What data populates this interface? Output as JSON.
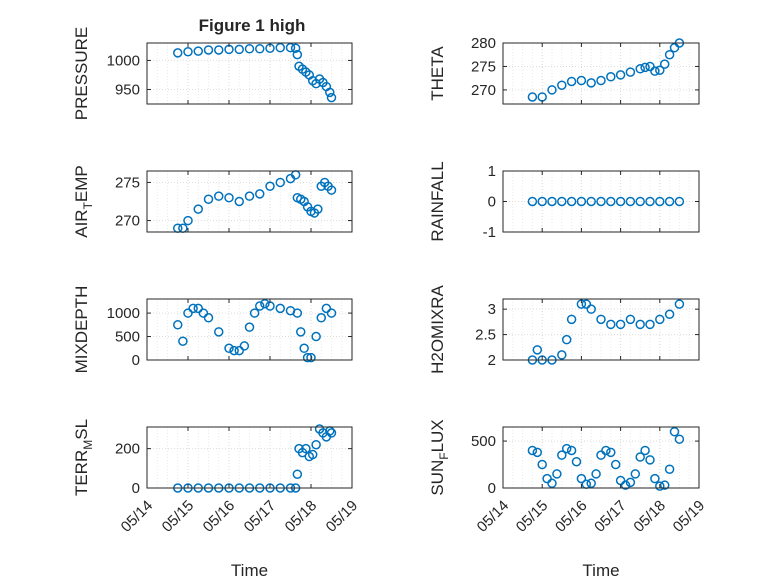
{
  "figure": {
    "title": "Figure 1 high",
    "marker_color": "#0072BD"
  },
  "chart_data": [
    {
      "type": "scatter",
      "id": "pressure",
      "title": "Figure 1 high",
      "ylabel": "PRESSURE",
      "xlim": [
        "05/14",
        "05/19"
      ],
      "ylim": [
        925,
        1030
      ],
      "yticks": [
        950,
        1000
      ],
      "xtick_labels": [],
      "x": [
        "05/14 18:00",
        "05/15 00:00",
        "05/15 06:00",
        "05/15 12:00",
        "05/15 18:00",
        "05/16 00:00",
        "05/16 06:00",
        "05/16 12:00",
        "05/16 18:00",
        "05/17 00:00",
        "05/17 06:00",
        "05/17 12:00",
        "05/17 15:00",
        "05/17 16:00",
        "05/17 17:00",
        "05/17 19:00",
        "05/17 21:00",
        "05/17 23:00",
        "05/18 01:00",
        "05/18 03:00",
        "05/18 05:00",
        "05/18 07:00",
        "05/18 09:00",
        "05/18 11:00",
        "05/18 12:00"
      ],
      "y": [
        1013,
        1015,
        1016,
        1018,
        1018,
        1019,
        1019,
        1020,
        1020,
        1021,
        1022,
        1022,
        1021,
        1010,
        990,
        985,
        980,
        975,
        965,
        960,
        968,
        962,
        955,
        945,
        936
      ]
    },
    {
      "type": "scatter",
      "id": "theta",
      "ylabel": "THETA",
      "xlim": [
        "05/14",
        "05/19"
      ],
      "ylim": [
        267,
        280
      ],
      "yticks": [
        270,
        275,
        280
      ],
      "xtick_labels": [],
      "x": [
        "05/14 18:00",
        "05/15 00:00",
        "05/15 06:00",
        "05/15 12:00",
        "05/15 18:00",
        "05/16 00:00",
        "05/16 06:00",
        "05/16 12:00",
        "05/16 18:00",
        "05/17 00:00",
        "05/17 06:00",
        "05/17 12:00",
        "05/17 15:00",
        "05/17 18:00",
        "05/17 21:00",
        "05/18 00:00",
        "05/18 03:00",
        "05/18 06:00",
        "05/18 09:00",
        "05/18 12:00"
      ],
      "y": [
        268.5,
        268.5,
        270,
        271,
        271.8,
        272,
        271.5,
        272,
        272.8,
        273.2,
        273.8,
        274.5,
        274.8,
        275,
        274,
        274.2,
        275.5,
        277.5,
        279,
        280
      ]
    },
    {
      "type": "scatter",
      "id": "air_temp",
      "ylabel": "AIR_TEMP",
      "xlim": [
        "05/14",
        "05/19"
      ],
      "ylim": [
        268.5,
        276.5
      ],
      "yticks": [
        270,
        275
      ],
      "xtick_labels": [],
      "x": [
        "05/14 18:00",
        "05/14 21:00",
        "05/15 00:00",
        "05/15 06:00",
        "05/15 12:00",
        "05/15 18:00",
        "05/16 00:00",
        "05/16 06:00",
        "05/16 12:00",
        "05/16 18:00",
        "05/17 00:00",
        "05/17 06:00",
        "05/17 12:00",
        "05/17 15:00",
        "05/17 16:00",
        "05/17 18:00",
        "05/17 20:00",
        "05/17 22:00",
        "05/18 00:00",
        "05/18 02:00",
        "05/18 04:00",
        "05/18 06:00",
        "05/18 08:00",
        "05/18 10:00",
        "05/18 12:00"
      ],
      "y": [
        269,
        269,
        270,
        271.5,
        272.8,
        273.2,
        273,
        272.5,
        273.2,
        273.5,
        274.5,
        275,
        275.5,
        276,
        273,
        272.8,
        272.5,
        271.8,
        271.2,
        271,
        271.5,
        274.5,
        275,
        274.5,
        274
      ]
    },
    {
      "type": "scatter",
      "id": "rainfall",
      "ylabel": "RAINFALL",
      "xlim": [
        "05/14",
        "05/19"
      ],
      "ylim": [
        -1,
        1
      ],
      "yticks": [
        -1,
        0,
        1
      ],
      "xtick_labels": [],
      "x": [
        "05/14 18:00",
        "05/15 00:00",
        "05/15 06:00",
        "05/15 12:00",
        "05/15 18:00",
        "05/16 00:00",
        "05/16 06:00",
        "05/16 12:00",
        "05/16 18:00",
        "05/17 00:00",
        "05/17 06:00",
        "05/17 12:00",
        "05/17 18:00",
        "05/18 00:00",
        "05/18 06:00",
        "05/18 12:00"
      ],
      "y": [
        0,
        0,
        0,
        0,
        0,
        0,
        0,
        0,
        0,
        0,
        0,
        0,
        0,
        0,
        0,
        0
      ]
    },
    {
      "type": "scatter",
      "id": "mixdepth",
      "ylabel": "MIXDEPTH",
      "xlim": [
        "05/14",
        "05/19"
      ],
      "ylim": [
        0,
        1300
      ],
      "yticks": [
        0,
        500,
        1000
      ],
      "xtick_labels": [],
      "x": [
        "05/14 18:00",
        "05/14 21:00",
        "05/15 00:00",
        "05/15 03:00",
        "05/15 06:00",
        "05/15 09:00",
        "05/15 12:00",
        "05/15 18:00",
        "05/16 00:00",
        "05/16 03:00",
        "05/16 06:00",
        "05/16 09:00",
        "05/16 12:00",
        "05/16 15:00",
        "05/16 18:00",
        "05/16 21:00",
        "05/17 00:00",
        "05/17 06:00",
        "05/17 12:00",
        "05/17 16:00",
        "05/17 18:00",
        "05/17 20:00",
        "05/17 22:00",
        "05/18 00:00",
        "05/18 03:00",
        "05/18 06:00",
        "05/18 09:00",
        "05/18 12:00"
      ],
      "y": [
        750,
        400,
        1000,
        1100,
        1100,
        1000,
        900,
        600,
        250,
        200,
        200,
        300,
        700,
        1000,
        1150,
        1200,
        1150,
        1100,
        1050,
        1000,
        600,
        250,
        50,
        50,
        500,
        900,
        1100,
        1000
      ]
    },
    {
      "type": "scatter",
      "id": "h2omixra",
      "ylabel": "H2OMIXRA",
      "xlim": [
        "05/14",
        "05/19"
      ],
      "ylim": [
        2,
        3.2
      ],
      "yticks": [
        2,
        2.5,
        3
      ],
      "xtick_labels": [],
      "x": [
        "05/14 18:00",
        "05/14 21:00",
        "05/15 00:00",
        "05/15 06:00",
        "05/15 12:00",
        "05/15 15:00",
        "05/15 18:00",
        "05/16 00:00",
        "05/16 03:00",
        "05/16 06:00",
        "05/16 12:00",
        "05/16 18:00",
        "05/17 00:00",
        "05/17 06:00",
        "05/17 12:00",
        "05/17 18:00",
        "05/18 00:00",
        "05/18 06:00",
        "05/18 12:00"
      ],
      "y": [
        2,
        2.2,
        2,
        2,
        2.1,
        2.4,
        2.8,
        3.1,
        3.1,
        3,
        2.8,
        2.7,
        2.7,
        2.8,
        2.7,
        2.7,
        2.8,
        2.9,
        3.1
      ]
    },
    {
      "type": "scatter",
      "id": "terr_msl",
      "ylabel": "TERR_MSL",
      "xlim": [
        "05/14",
        "05/19"
      ],
      "ylim": [
        0,
        310
      ],
      "yticks": [
        0,
        200
      ],
      "xtick_labels": [
        "05/14",
        "05/15",
        "05/16",
        "05/17",
        "05/18",
        "05/19"
      ],
      "xlabel": "Time",
      "x": [
        "05/14 18:00",
        "05/15 00:00",
        "05/15 06:00",
        "05/15 12:00",
        "05/15 18:00",
        "05/16 00:00",
        "05/16 06:00",
        "05/16 12:00",
        "05/16 18:00",
        "05/17 00:00",
        "05/17 06:00",
        "05/17 12:00",
        "05/17 15:00",
        "05/17 16:00",
        "05/17 17:00",
        "05/17 19:00",
        "05/17 21:00",
        "05/17 23:00",
        "05/18 01:00",
        "05/18 03:00",
        "05/18 05:00",
        "05/18 07:00",
        "05/18 09:00",
        "05/18 11:00",
        "05/18 12:00"
      ],
      "y": [
        0,
        0,
        0,
        0,
        0,
        0,
        0,
        0,
        0,
        0,
        0,
        0,
        0,
        70,
        200,
        180,
        200,
        160,
        170,
        220,
        300,
        280,
        260,
        290,
        280
      ]
    },
    {
      "type": "scatter",
      "id": "sun_flux",
      "ylabel": "SUN_FLUX",
      "xlim": [
        "05/14",
        "05/19"
      ],
      "ylim": [
        0,
        650
      ],
      "yticks": [
        0,
        500
      ],
      "xtick_labels": [
        "05/14",
        "05/15",
        "05/16",
        "05/17",
        "05/18",
        "05/19"
      ],
      "xlabel": "Time",
      "x": [
        "05/14 18:00",
        "05/14 21:00",
        "05/15 00:00",
        "05/15 03:00",
        "05/15 06:00",
        "05/15 09:00",
        "05/15 12:00",
        "05/15 15:00",
        "05/15 18:00",
        "05/15 21:00",
        "05/16 00:00",
        "05/16 03:00",
        "05/16 06:00",
        "05/16 09:00",
        "05/16 12:00",
        "05/16 15:00",
        "05/16 18:00",
        "05/16 21:00",
        "05/17 00:00",
        "05/17 03:00",
        "05/17 06:00",
        "05/17 09:00",
        "05/17 12:00",
        "05/17 15:00",
        "05/17 18:00",
        "05/17 21:00",
        "05/18 00:00",
        "05/18 03:00",
        "05/18 06:00",
        "05/18 09:00",
        "05/18 12:00"
      ],
      "y": [
        400,
        380,
        250,
        100,
        50,
        150,
        350,
        420,
        400,
        280,
        100,
        40,
        50,
        150,
        350,
        400,
        380,
        250,
        80,
        30,
        60,
        150,
        330,
        400,
        300,
        100,
        20,
        30,
        200,
        600,
        520
      ]
    }
  ]
}
